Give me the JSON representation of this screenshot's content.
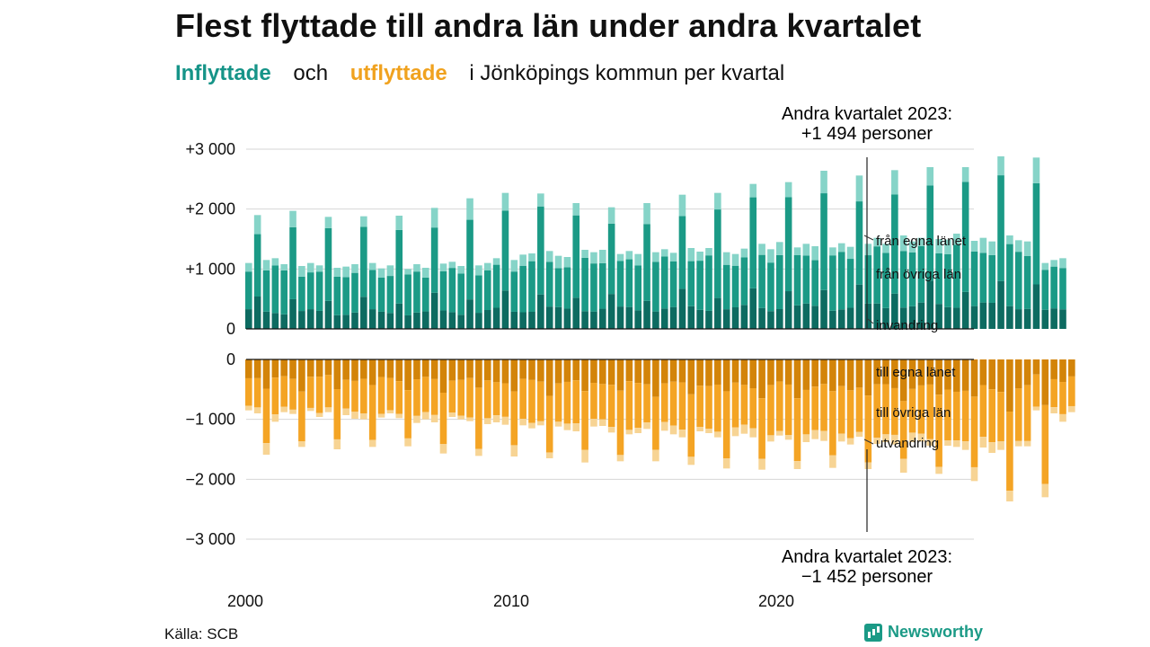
{
  "header": {
    "title": "Flest flyttade till andra län under andra kvartalet",
    "subtitle_in": "Inflyttade",
    "subtitle_and": "och",
    "subtitle_out": "utflyttade",
    "subtitle_rest": "i Jönköpings kommun per kvartal"
  },
  "annotations": {
    "top_line1": "Andra kvartalet 2023:",
    "top_line2": "+1 494 personer",
    "bottom_line1": "Andra kvartalet 2023:",
    "bottom_line2": "−1 452 personer"
  },
  "source": "Källa: SCB",
  "brand": "Newsworthy",
  "colors": {
    "in_local": "#0d6b61",
    "in_region": "#1b9a86",
    "in_immigration": "#86d4c8",
    "out_local": "#d38409",
    "out_region": "#f4a424",
    "out_emigration": "#f7d494",
    "grid": "#d6d6d6"
  },
  "chart_data": {
    "type": "bar",
    "stacked": true,
    "period": "quarterly",
    "x_tick_labels": [
      "2000",
      "2010",
      "2020"
    ],
    "y_tick_labels": [
      "+3 000",
      "+2 000",
      "+1 000",
      "0",
      "0",
      "−1 000",
      "−2 000",
      "−3 000"
    ],
    "upper": {
      "ylim": [
        0,
        3000
      ],
      "series_labels": [
        "invandring",
        "från övriga län",
        "från egna länet"
      ],
      "total_q2": [
        1900,
        1970,
        1870,
        1880,
        1890,
        2020,
        2180,
        2270,
        2260,
        2100,
        2030,
        2100,
        2240,
        2270,
        2420,
        2450,
        2640,
        2560,
        2650,
        2700,
        2700,
        2880,
        2860
      ],
      "total_other": [
        1100,
        1150,
        1180,
        1080,
        1050,
        1100,
        1060,
        1020,
        1040,
        1080,
        1100,
        1010,
        1060,
        1000,
        1080,
        1020,
        1090,
        1120,
        1050,
        1060,
        1100,
        1180,
        1150,
        1240,
        1260,
        1300,
        1220,
        1200,
        1320,
        1280,
        1320,
        1250,
        1300,
        1250,
        1280,
        1330,
        1270,
        1350,
        1290,
        1350,
        1280,
        1250,
        1340,
        1420,
        1330,
        1450,
        1360,
        1420,
        1380,
        1360,
        1430,
        1370,
        1420,
        1520,
        1420,
        1560,
        1460,
        1520,
        1500,
        1490,
        1590,
        1470,
        1520,
        1460,
        1560,
        1480,
        1460
      ],
      "immigration_share": 0.13,
      "local_share": 0.26
    },
    "lower": {
      "ylim": [
        -3000,
        0
      ],
      "series_labels": [
        "till egna länet",
        "till övriga län",
        "utvandring"
      ],
      "total_q3": [
        -1590,
        -1460,
        -1500,
        -1460,
        -1450,
        -1570,
        -1610,
        -1620,
        -1650,
        -1720,
        -1700,
        -1700,
        -1760,
        -1820,
        -1840,
        -1830,
        -1810,
        -1830,
        -1890,
        -1910,
        -2030,
        -2370,
        -2300
      ],
      "total_other": [
        -850,
        -900,
        -1040,
        -880,
        -910,
        -860,
        -960,
        -880,
        -930,
        -990,
        -1000,
        -970,
        -900,
        -980,
        -1060,
        -1000,
        -1050,
        -960,
        -1000,
        -1030,
        -1080,
        -1050,
        -1090,
        -1100,
        -1150,
        -1100,
        -1120,
        -1180,
        -1200,
        -1120,
        -1110,
        -1220,
        -1250,
        -1230,
        -1160,
        -1190,
        -1250,
        -1300,
        -1200,
        -1230,
        -1300,
        -1280,
        -1240,
        -1300,
        -1370,
        -1270,
        -1340,
        -1380,
        -1330,
        -1360,
        -1370,
        -1420,
        -1290,
        -1410,
        -1380,
        -1420,
        -1380,
        -1370,
        -1440,
        -1440,
        -1460,
        -1510,
        -1470,
        -1560,
        -1510,
        -1450,
        -1450
      ],
      "emigration_share": 0.09,
      "local_share": 0.33
    },
    "latest_quarter": "Andra kvartalet 2023",
    "latest_in": 1494,
    "latest_out": -1452
  }
}
